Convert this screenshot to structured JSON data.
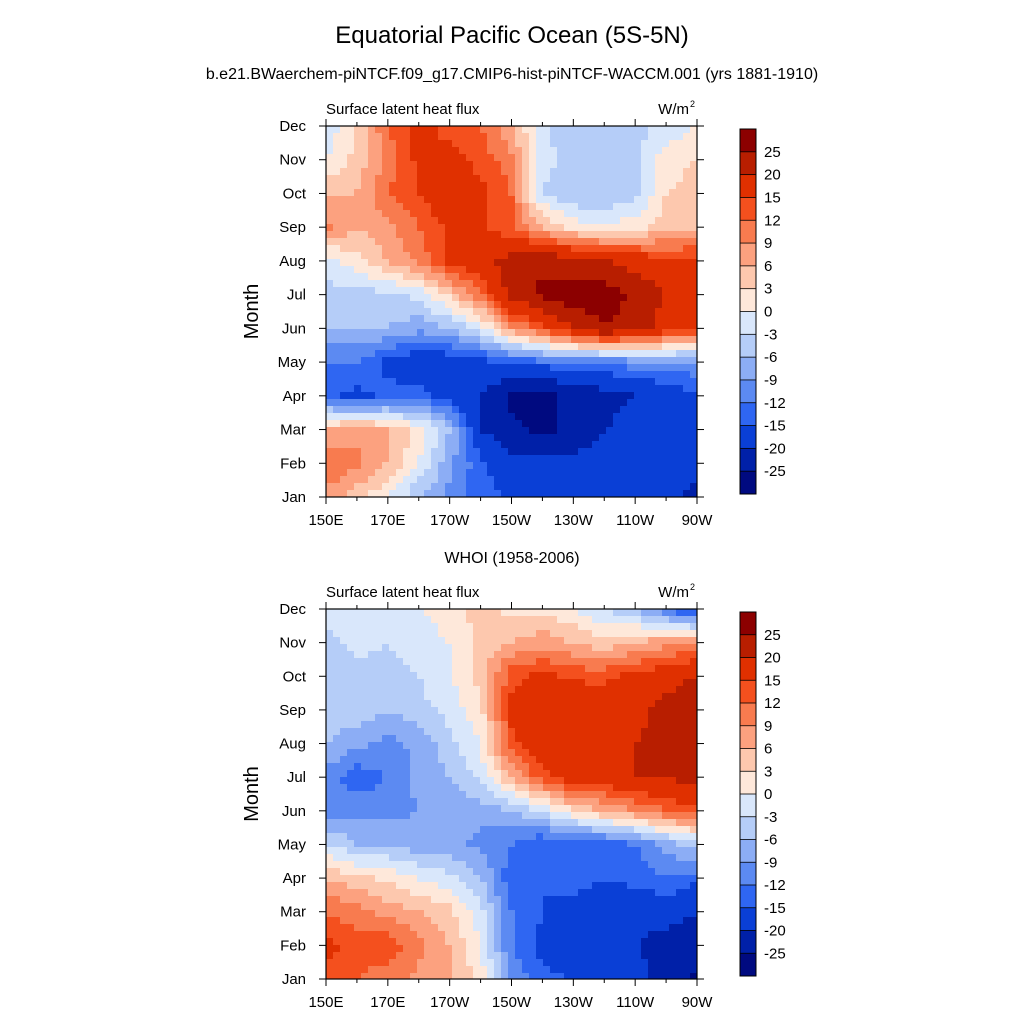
{
  "title": "Equatorial Pacific Ocean (5S-5N)",
  "subtitle": "b.e21.BWaerchem-piNTCF.f09_g17.CMIP6-hist-piNTCF-WACCM.001 (yrs 1881-1910)",
  "chart_data": [
    {
      "type": "heatmap",
      "title": "",
      "left_label": "Surface latent heat flux",
      "units": "W/m",
      "units_superscript": "2",
      "xlabel": "",
      "ylabel": "Month",
      "x_ticks": [
        "150E",
        "170E",
        "170W",
        "150W",
        "130W",
        "110W",
        "90W"
      ],
      "y_ticks": [
        "Jan",
        "Feb",
        "Mar",
        "Apr",
        "May",
        "Jun",
        "Jul",
        "Aug",
        "Sep",
        "Oct",
        "Nov",
        "Dec"
      ],
      "x": [
        "150E",
        "160E",
        "170E",
        "180",
        "170W",
        "160W",
        "150W",
        "140W",
        "130W",
        "120W",
        "110W",
        "100W",
        "90W"
      ],
      "y": [
        "Jan",
        "Feb",
        "Mar",
        "Apr",
        "May",
        "Jun",
        "Jul",
        "Aug",
        "Sep",
        "Oct",
        "Nov",
        "Dec"
      ],
      "z": [
        [
          8,
          4,
          0,
          -6,
          -10,
          -14,
          -15,
          -15,
          -16,
          -16,
          -16,
          -18,
          -22
        ],
        [
          12,
          10,
          6,
          0,
          -8,
          -14,
          -18,
          -18,
          -18,
          -18,
          -18,
          -16,
          -18
        ],
        [
          6,
          8,
          6,
          2,
          -6,
          -20,
          -24,
          -26,
          -24,
          -20,
          -18,
          -15,
          -15
        ],
        [
          -14,
          -16,
          -14,
          -14,
          -16,
          -20,
          -26,
          -26,
          -24,
          -22,
          -20,
          -18,
          -15
        ],
        [
          -12,
          -12,
          -16,
          -18,
          -18,
          -16,
          -14,
          -13,
          -13,
          -12,
          -10,
          -10,
          -10
        ],
        [
          -6,
          -6,
          -6,
          -8,
          -6,
          -2,
          8,
          14,
          20,
          25,
          22,
          18,
          16
        ],
        [
          -4,
          -4,
          -4,
          -2,
          4,
          12,
          22,
          26,
          28,
          28,
          24,
          20,
          18
        ],
        [
          -2,
          2,
          6,
          10,
          16,
          18,
          22,
          24,
          22,
          20,
          18,
          16,
          16
        ],
        [
          10,
          6,
          8,
          12,
          16,
          16,
          12,
          6,
          2,
          0,
          2,
          4,
          6
        ],
        [
          6,
          6,
          12,
          15,
          18,
          16,
          12,
          -3,
          -6,
          -6,
          -4,
          3,
          4
        ],
        [
          0,
          4,
          10,
          16,
          16,
          14,
          10,
          -2,
          -4,
          -6,
          -4,
          2,
          3
        ],
        [
          -2,
          3,
          12,
          16,
          14,
          12,
          6,
          -2,
          -6,
          -6,
          -4,
          -2,
          0
        ]
      ],
      "levels": [
        "25",
        "20",
        "15",
        "12",
        "9",
        "6",
        "3",
        "0",
        "-3",
        "-6",
        "-9",
        "-12",
        "-15",
        "-20",
        "-25"
      ],
      "colors": [
        "#8c0000",
        "#b81e00",
        "#e03000",
        "#f4501e",
        "#f87b4f",
        "#fca17f",
        "#fdc8ae",
        "#fee8da",
        "#d9e7fb",
        "#b5cdf8",
        "#8cadf5",
        "#5c8af2",
        "#2f66f2",
        "#0a3fd6",
        "#0020a8",
        "#000a80"
      ],
      "zlim": [
        -30,
        30
      ],
      "grid": false
    },
    {
      "type": "heatmap",
      "title": "WHOI (1958-2006)",
      "left_label": "Surface latent heat flux",
      "units": "W/m",
      "units_superscript": "2",
      "xlabel": "",
      "ylabel": "Month",
      "x_ticks": [
        "150E",
        "170E",
        "170W",
        "150W",
        "130W",
        "110W",
        "90W"
      ],
      "y_ticks": [
        "Jan",
        "Feb",
        "Mar",
        "Apr",
        "May",
        "Jun",
        "Jul",
        "Aug",
        "Sep",
        "Oct",
        "Nov",
        "Dec"
      ],
      "x": [
        "150E",
        "160E",
        "170E",
        "180",
        "170W",
        "160W",
        "150W",
        "140W",
        "130W",
        "120W",
        "110W",
        "100W",
        "90W"
      ],
      "y": [
        "Jan",
        "Feb",
        "Mar",
        "Apr",
        "May",
        "Jun",
        "Jul",
        "Aug",
        "Sep",
        "Oct",
        "Nov",
        "Dec"
      ],
      "z": [
        [
          14,
          12,
          10,
          8,
          6,
          2,
          -10,
          -14,
          -15,
          -18,
          -18,
          -22,
          -26
        ],
        [
          16,
          14,
          14,
          10,
          6,
          0,
          -12,
          -16,
          -18,
          -20,
          -20,
          -22,
          -22
        ],
        [
          12,
          10,
          8,
          6,
          4,
          -2,
          -12,
          -15,
          -16,
          -17,
          -18,
          -18,
          -20
        ],
        [
          6,
          4,
          2,
          0,
          -2,
          -6,
          -14,
          -15,
          -14,
          -15,
          -14,
          -12,
          -14
        ],
        [
          -3,
          -6,
          -6,
          -8,
          -8,
          -10,
          -12,
          -15,
          -15,
          -14,
          -12,
          -8,
          -4
        ],
        [
          -10,
          -10,
          -10,
          -9,
          -8,
          -8,
          -6,
          -3,
          3,
          6,
          9,
          12,
          14
        ],
        [
          -10,
          -14,
          -12,
          -8,
          -6,
          -2,
          6,
          14,
          18,
          18,
          20,
          20,
          22
        ],
        [
          -6,
          -8,
          -10,
          -8,
          -4,
          0,
          14,
          18,
          20,
          20,
          20,
          22,
          22
        ],
        [
          -4,
          -4,
          -6,
          -4,
          -2,
          2,
          16,
          18,
          20,
          18,
          18,
          22,
          24
        ],
        [
          -6,
          -4,
          -4,
          -3,
          0,
          4,
          14,
          16,
          14,
          14,
          16,
          18,
          20
        ],
        [
          -4,
          -2,
          -3,
          -2,
          0,
          4,
          6,
          8,
          6,
          4,
          6,
          8,
          10
        ],
        [
          -2,
          -2,
          -2,
          0,
          2,
          4,
          2,
          2,
          0,
          -3,
          -6,
          -12,
          -18
        ]
      ],
      "levels": [
        "25",
        "20",
        "15",
        "12",
        "9",
        "6",
        "3",
        "0",
        "-3",
        "-6",
        "-9",
        "-12",
        "-15",
        "-20",
        "-25"
      ],
      "colors": [
        "#8c0000",
        "#b81e00",
        "#e03000",
        "#f4501e",
        "#f87b4f",
        "#fca17f",
        "#fdc8ae",
        "#fee8da",
        "#d9e7fb",
        "#b5cdf8",
        "#8cadf5",
        "#5c8af2",
        "#2f66f2",
        "#0a3fd6",
        "#0020a8",
        "#000a80"
      ],
      "zlim": [
        -30,
        30
      ],
      "grid": false
    }
  ]
}
